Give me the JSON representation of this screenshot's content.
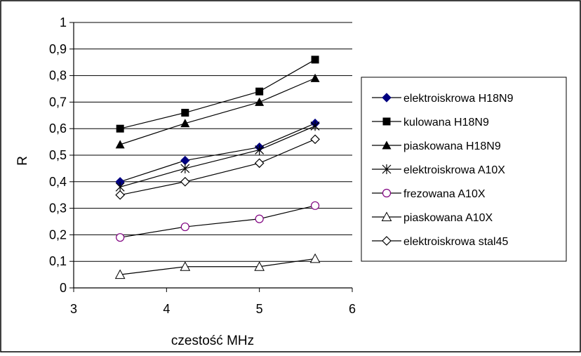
{
  "chart_data": {
    "type": "line",
    "title": "",
    "xlabel": "czestość MHz",
    "ylabel": "R",
    "xlim": [
      3,
      6
    ],
    "ylim": [
      0,
      1
    ],
    "x_ticks": [
      "3",
      "4",
      "5",
      "6"
    ],
    "y_ticks": [
      "0",
      "0,1",
      "0,2",
      "0,3",
      "0,4",
      "0,5",
      "0,6",
      "0,7",
      "0,8",
      "0,9",
      "1"
    ],
    "grid": "horizontal",
    "legend_position": "right",
    "x": [
      3.5,
      4.2,
      5.0,
      5.6
    ],
    "series": [
      {
        "name": "elektroiskrowa H18N9",
        "marker": "diamond-filled",
        "color": "#000080",
        "values": [
          0.4,
          0.48,
          0.53,
          0.62
        ]
      },
      {
        "name": "kulowana H18N9",
        "marker": "square-filled",
        "color": "#000000",
        "values": [
          0.6,
          0.66,
          0.74,
          0.86
        ]
      },
      {
        "name": "piaskowana H18N9",
        "marker": "triangle-filled",
        "color": "#000000",
        "values": [
          0.54,
          0.62,
          0.7,
          0.79
        ]
      },
      {
        "name": "elektroiskrowa A10X",
        "marker": "asterisk",
        "color": "#000000",
        "values": [
          0.38,
          0.45,
          0.52,
          0.61
        ]
      },
      {
        "name": "frezowana A10X",
        "marker": "circle-open",
        "color": "#800080",
        "values": [
          0.19,
          0.23,
          0.26,
          0.31
        ]
      },
      {
        "name": "piaskowana A10X",
        "marker": "triangle-open",
        "color": "#000000",
        "values": [
          0.05,
          0.08,
          0.08,
          0.11
        ]
      },
      {
        "name": "elektroiskrowa stal45",
        "marker": "diamond-open",
        "color": "#000000",
        "values": [
          0.35,
          0.4,
          0.47,
          0.56
        ]
      }
    ]
  }
}
